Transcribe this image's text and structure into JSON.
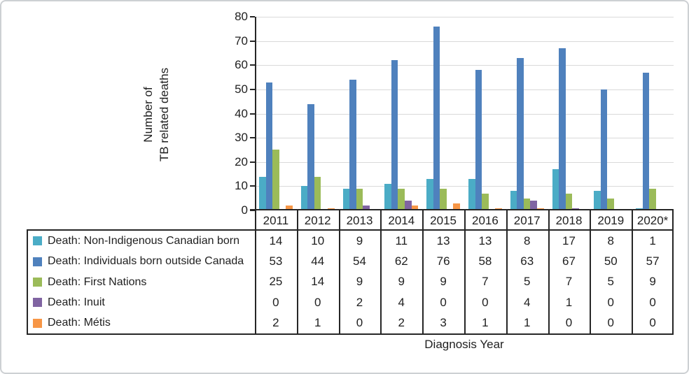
{
  "ui": {
    "y_axis_title_line1": "Number of",
    "y_axis_title_line2": "TB related deaths",
    "x_axis_title": "Diagnosis Year"
  },
  "colors": {
    "series_teal": "#4BACC6",
    "series_blue": "#4F81BD",
    "series_green": "#9BBB59",
    "series_purple": "#8064A2",
    "series_orange": "#F79646",
    "gridline": "#d9d9d9",
    "axis_and_table_border": "#262626"
  },
  "chart_data": {
    "type": "bar",
    "title": "",
    "xlabel": "Diagnosis Year",
    "ylabel": "Number of TB related deaths",
    "ylim": [
      0,
      80
    ],
    "yticks": [
      0,
      10,
      20,
      30,
      40,
      50,
      60,
      70,
      80
    ],
    "grid": true,
    "legend_position": "table-left",
    "categories": [
      "2011",
      "2012",
      "2013",
      "2014",
      "2015",
      "2016",
      "2017",
      "2018",
      "2019",
      "2020*"
    ],
    "series": [
      {
        "name": "Death: Non-Indigenous Canadian born",
        "color": "#4BACC6",
        "values": [
          14,
          10,
          9,
          11,
          13,
          13,
          8,
          17,
          8,
          1
        ]
      },
      {
        "name": "Death: Individuals born outside Canada",
        "color": "#4F81BD",
        "values": [
          53,
          44,
          54,
          62,
          76,
          58,
          63,
          67,
          50,
          57
        ]
      },
      {
        "name": "Death: First Nations",
        "color": "#9BBB59",
        "values": [
          25,
          14,
          9,
          9,
          9,
          7,
          5,
          7,
          5,
          9
        ]
      },
      {
        "name": "Death: Inuit",
        "color": "#8064A2",
        "values": [
          0,
          0,
          2,
          4,
          0,
          0,
          4,
          1,
          0,
          0
        ]
      },
      {
        "name": "Death: Métis",
        "color": "#F79646",
        "values": [
          2,
          1,
          0,
          2,
          3,
          1,
          1,
          0,
          0,
          0
        ]
      }
    ]
  }
}
